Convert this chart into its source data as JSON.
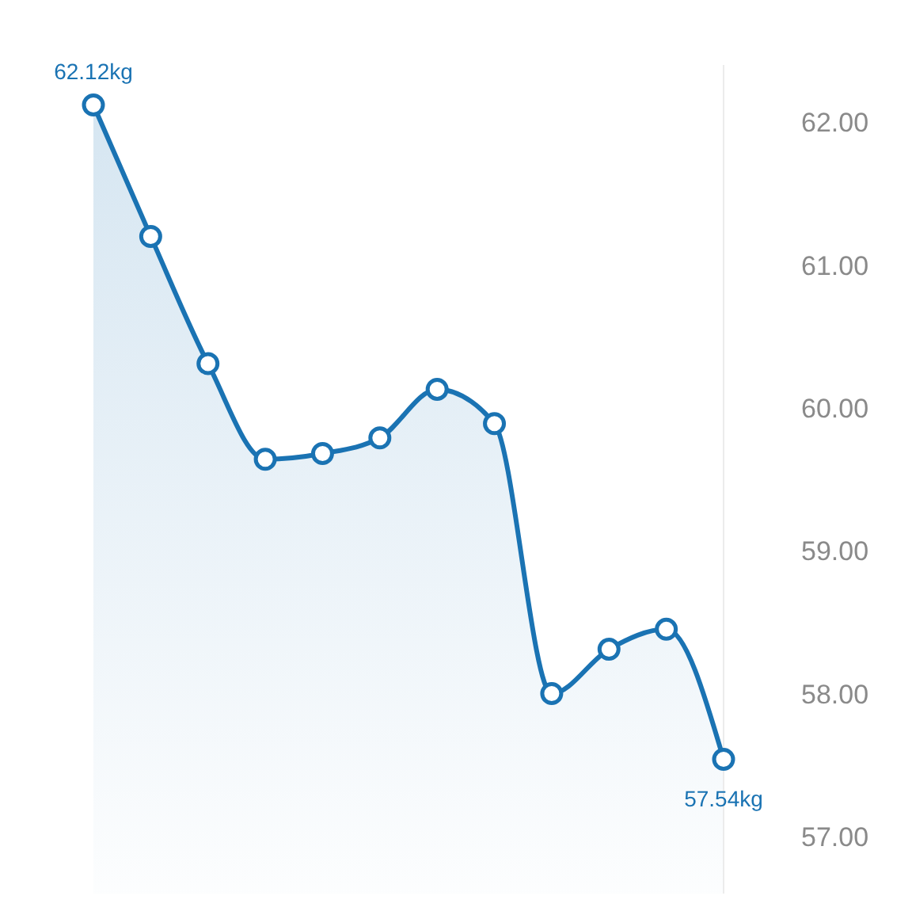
{
  "chart_data": {
    "type": "area",
    "categories": [
      null,
      null,
      null,
      null,
      null,
      null,
      null,
      null,
      null,
      null,
      null,
      null
    ],
    "series": [
      {
        "color": "#1a73b3",
        "values": [
          62.12,
          61.2,
          60.31,
          59.64,
          59.68,
          59.79,
          60.13,
          59.89,
          58.0,
          58.31,
          58.45,
          57.54
        ],
        "value_labels": [
          "62.12kg",
          null,
          null,
          null,
          null,
          null,
          null,
          null,
          null,
          null,
          null,
          "57.54kg"
        ]
      }
    ],
    "ylim": [
      56.6,
      62.4
    ],
    "yticks": [
      {
        "value": 57,
        "label": "57.00"
      },
      {
        "value": 58,
        "label": "58.00"
      },
      {
        "value": 59,
        "label": "59.00"
      },
      {
        "value": 60,
        "label": "60.00"
      },
      {
        "value": 61,
        "label": "61.00"
      },
      {
        "value": 62,
        "label": "62.00"
      }
    ],
    "tick_labels": "y",
    "marker": "circle",
    "line_style": "solid"
  }
}
